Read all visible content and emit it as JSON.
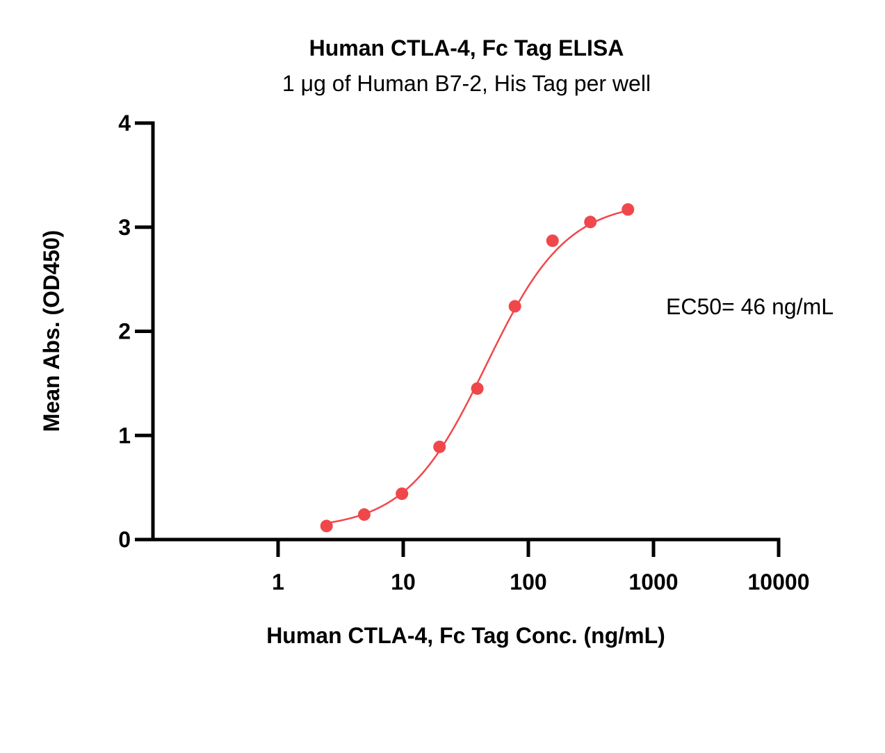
{
  "chart_data": {
    "type": "scatter",
    "title": "Human CTLA-4, Fc Tag ELISA",
    "subtitle": "1 μg of Human B7-2, His Tag per well",
    "xlabel": "Human CTLA-4, Fc Tag Conc. (ng/mL)",
    "ylabel": "Mean Abs. (OD450)",
    "xscale": "log",
    "xlim": [
      0.1,
      10000
    ],
    "ylim": [
      0,
      4
    ],
    "x_ticks": [
      1,
      10,
      100,
      1000,
      10000
    ],
    "x_tick_labels": [
      "1",
      "10",
      "100",
      "1000",
      "10000"
    ],
    "y_ticks": [
      0,
      1,
      2,
      3,
      4
    ],
    "y_tick_labels": [
      "0",
      "1",
      "2",
      "3",
      "4"
    ],
    "grid": false,
    "color": "#f0474b",
    "series": [
      {
        "x": [
          2.44,
          4.88,
          9.77,
          19.5,
          39.1,
          78.1,
          156,
          313,
          625
        ],
        "y": [
          0.13,
          0.24,
          0.44,
          0.89,
          1.45,
          2.24,
          2.87,
          3.05,
          3.17
        ]
      }
    ],
    "fit": {
      "type": "4PL",
      "bottom": 0.1,
      "top": 3.25,
      "ec50": 46,
      "hill": 1.35
    },
    "annotation": "EC50= 46 ng/mL"
  }
}
